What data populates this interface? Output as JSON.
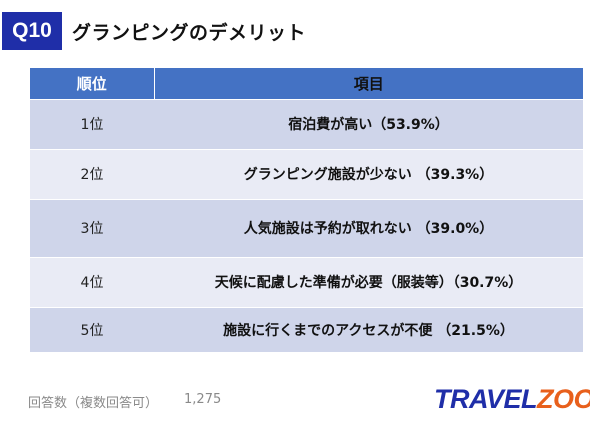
{
  "badge": "Q10",
  "title": "グランピングのデメリット",
  "table": {
    "headers": {
      "rank": "順位",
      "item": "項目"
    },
    "rows": [
      {
        "rank": "1位",
        "item": "宿泊費が高い（53.9%）"
      },
      {
        "rank": "2位",
        "item": "グランピング施設が少ない （39.3%）"
      },
      {
        "rank": "3位",
        "item": "人気施設は予約が取れない （39.0%）"
      },
      {
        "rank": "4位",
        "item": "天候に配慮した準備が必要（服装等）（30.7%）"
      },
      {
        "rank": "5位",
        "item": "施設に行くまでのアクセスが不便 （21.5%）"
      }
    ]
  },
  "footnote": {
    "label": "回答数（複数回答可）",
    "value": "1,275"
  },
  "logo": {
    "part_a": "TRAVEL",
    "part_b": "ZOO",
    "reg": "®",
    "colors": {
      "primary": "#1f2ea8",
      "accent": "#e8601c"
    }
  },
  "colors": {
    "badge": "#1f2ea8",
    "header": "#4472c4",
    "row_dark": "#cfd5ea",
    "row_light": "#e9ebf5"
  }
}
